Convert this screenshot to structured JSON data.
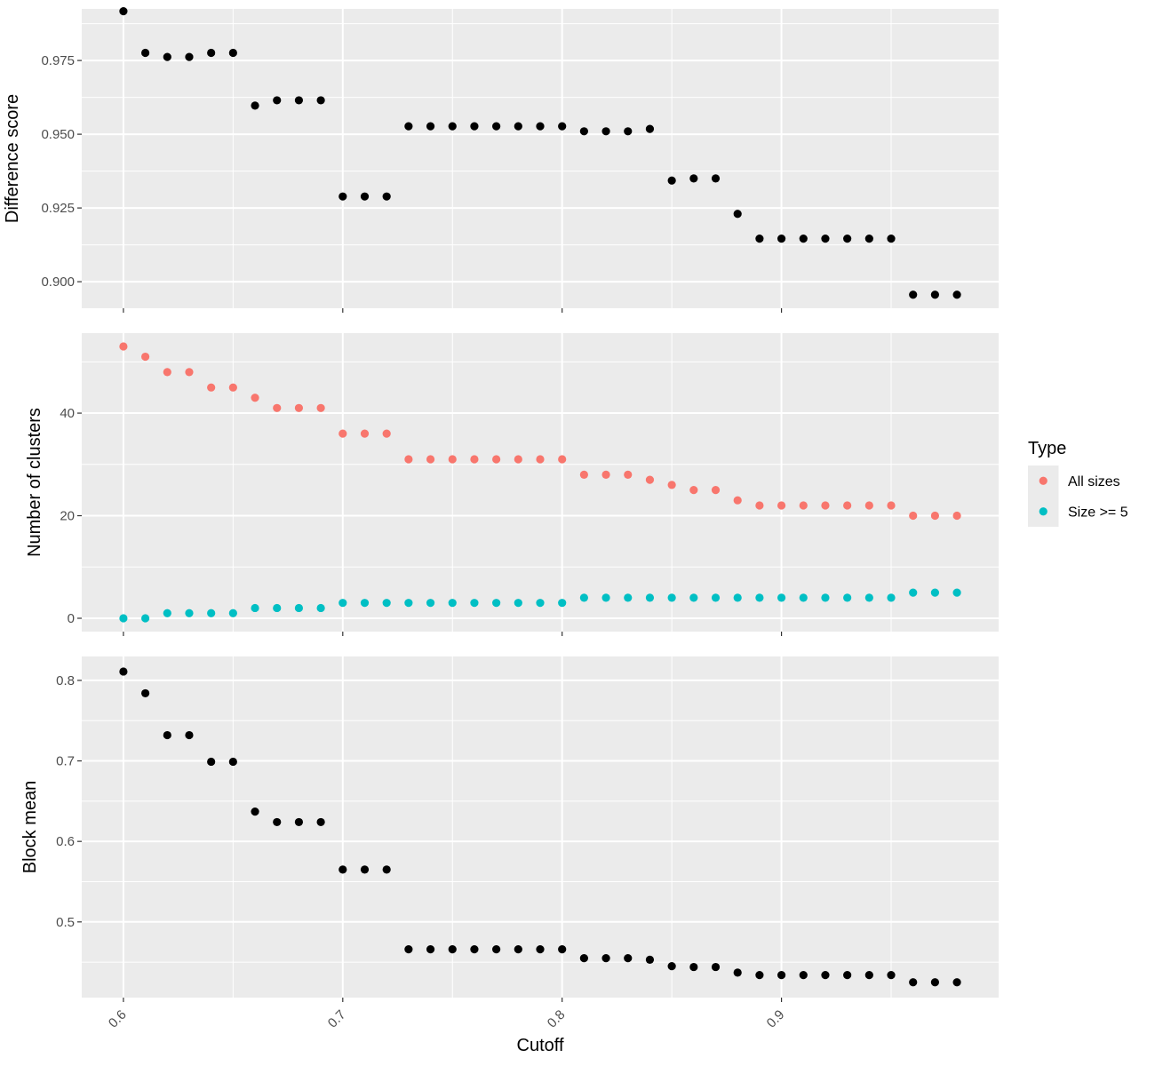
{
  "chart_data": {
    "type": "scatter",
    "xlabel": "Cutoff",
    "x": [
      0.6,
      0.61,
      0.62,
      0.63,
      0.64,
      0.65,
      0.66,
      0.67,
      0.68,
      0.69,
      0.7,
      0.71,
      0.72,
      0.73,
      0.74,
      0.75,
      0.76,
      0.77,
      0.78,
      0.79,
      0.8,
      0.81,
      0.82,
      0.83,
      0.84,
      0.85,
      0.86,
      0.87,
      0.88,
      0.89,
      0.9,
      0.91,
      0.92,
      0.93,
      0.94,
      0.95,
      0.96,
      0.97,
      0.98
    ],
    "x_ticks": [
      0.6,
      0.7,
      0.8,
      0.9
    ],
    "x_tick_labels": [
      "0.6",
      "0.7",
      "0.8",
      "0.9"
    ],
    "xlim": [
      0.581,
      0.999
    ],
    "grid": true,
    "panels": [
      {
        "ylabel": "Difference score",
        "ylim": [
          0.891,
          0.9925
        ],
        "y_ticks": [
          0.9,
          0.925,
          0.95,
          0.975
        ],
        "y_tick_labels": [
          "0.900",
          "0.925",
          "0.950",
          "0.975"
        ],
        "series": [
          {
            "color": "#000000",
            "values": [
              0.9917,
              0.9776,
              0.9762,
              0.9762,
              0.9776,
              0.9776,
              0.9597,
              0.9615,
              0.9615,
              0.9615,
              0.9289,
              0.9289,
              0.9289,
              0.9527,
              0.9527,
              0.9527,
              0.9527,
              0.9527,
              0.9527,
              0.9527,
              0.9527,
              0.951,
              0.951,
              0.951,
              0.9518,
              0.9343,
              0.935,
              0.935,
              0.923,
              0.9146,
              0.9146,
              0.9146,
              0.9146,
              0.9146,
              0.9146,
              0.9146,
              0.8956,
              0.8956,
              0.8956
            ]
          }
        ]
      },
      {
        "ylabel": "Number of clusters",
        "ylim": [
          -2.6,
          55.6
        ],
        "y_ticks": [
          0,
          20,
          40
        ],
        "y_tick_labels": [
          "0",
          "20",
          "40"
        ],
        "series": [
          {
            "name": "All sizes",
            "color": "#F8766D",
            "values": [
              53,
              51,
              48,
              48,
              45,
              45,
              43,
              41,
              41,
              41,
              36,
              36,
              36,
              31,
              31,
              31,
              31,
              31,
              31,
              31,
              31,
              28,
              28,
              28,
              27,
              26,
              25,
              25,
              23,
              22,
              22,
              22,
              22,
              22,
              22,
              22,
              20,
              20,
              20
            ]
          },
          {
            "name": "Size >= 5",
            "color": "#00BFC4",
            "values": [
              0,
              0,
              1,
              1,
              1,
              1,
              2,
              2,
              2,
              2,
              3,
              3,
              3,
              3,
              3,
              3,
              3,
              3,
              3,
              3,
              3,
              4,
              4,
              4,
              4,
              4,
              4,
              4,
              4,
              4,
              4,
              4,
              4,
              4,
              4,
              4,
              5,
              5,
              5
            ]
          }
        ]
      },
      {
        "ylabel": "Block mean",
        "ylim": [
          0.406,
          0.8297
        ],
        "y_ticks": [
          0.5,
          0.6,
          0.7,
          0.8
        ],
        "y_tick_labels": [
          "0.5",
          "0.6",
          "0.7",
          "0.8"
        ],
        "series": [
          {
            "color": "#000000",
            "values": [
              0.811,
              0.784,
              0.732,
              0.732,
              0.699,
              0.699,
              0.637,
              0.624,
              0.624,
              0.624,
              0.565,
              0.565,
              0.565,
              0.466,
              0.466,
              0.466,
              0.466,
              0.466,
              0.466,
              0.466,
              0.466,
              0.455,
              0.455,
              0.455,
              0.453,
              0.445,
              0.444,
              0.444,
              0.437,
              0.434,
              0.434,
              0.434,
              0.434,
              0.434,
              0.434,
              0.434,
              0.425,
              0.425,
              0.425
            ]
          }
        ]
      }
    ],
    "legend": {
      "title": "Type",
      "placement": "right",
      "items": [
        {
          "label": "All sizes",
          "color": "#F8766D"
        },
        {
          "label": "Size >= 5",
          "color": "#00BFC4"
        }
      ]
    }
  }
}
